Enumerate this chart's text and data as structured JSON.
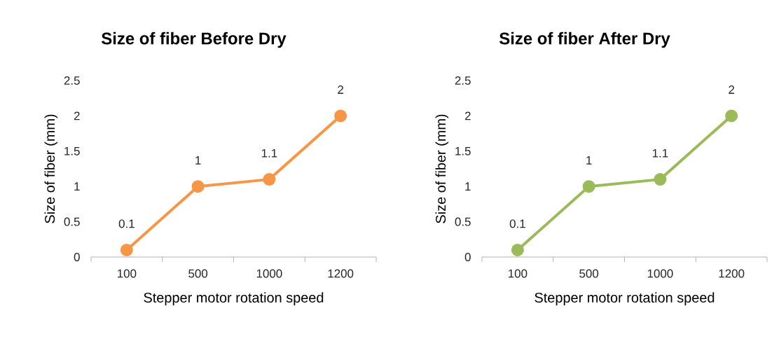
{
  "chart_data": [
    {
      "type": "line",
      "title": "Size of fiber Before Dry",
      "xlabel": "Stepper motor rotation speed",
      "ylabel": "Size of fiber (mm)",
      "categories": [
        "100",
        "500",
        "1000",
        "1200"
      ],
      "values": [
        0.1,
        1,
        1.1,
        2
      ],
      "color": "#f79646",
      "marker": "circle",
      "data_labels": true,
      "ylim": [
        0,
        2.5
      ],
      "yticks": [
        0,
        0.5,
        1,
        1.5,
        2,
        2.5
      ]
    },
    {
      "type": "line",
      "title": "Size of fiber After Dry",
      "xlabel": "Stepper motor rotation speed",
      "ylabel": "Size of fiber (mm)",
      "categories": [
        "100",
        "500",
        "1000",
        "1200"
      ],
      "values": [
        0.1,
        1,
        1.1,
        2
      ],
      "color": "#9bbb59",
      "marker": "circle",
      "data_labels": true,
      "ylim": [
        0,
        2.5
      ],
      "yticks": [
        0,
        0.5,
        1,
        1.5,
        2,
        2.5
      ]
    }
  ]
}
